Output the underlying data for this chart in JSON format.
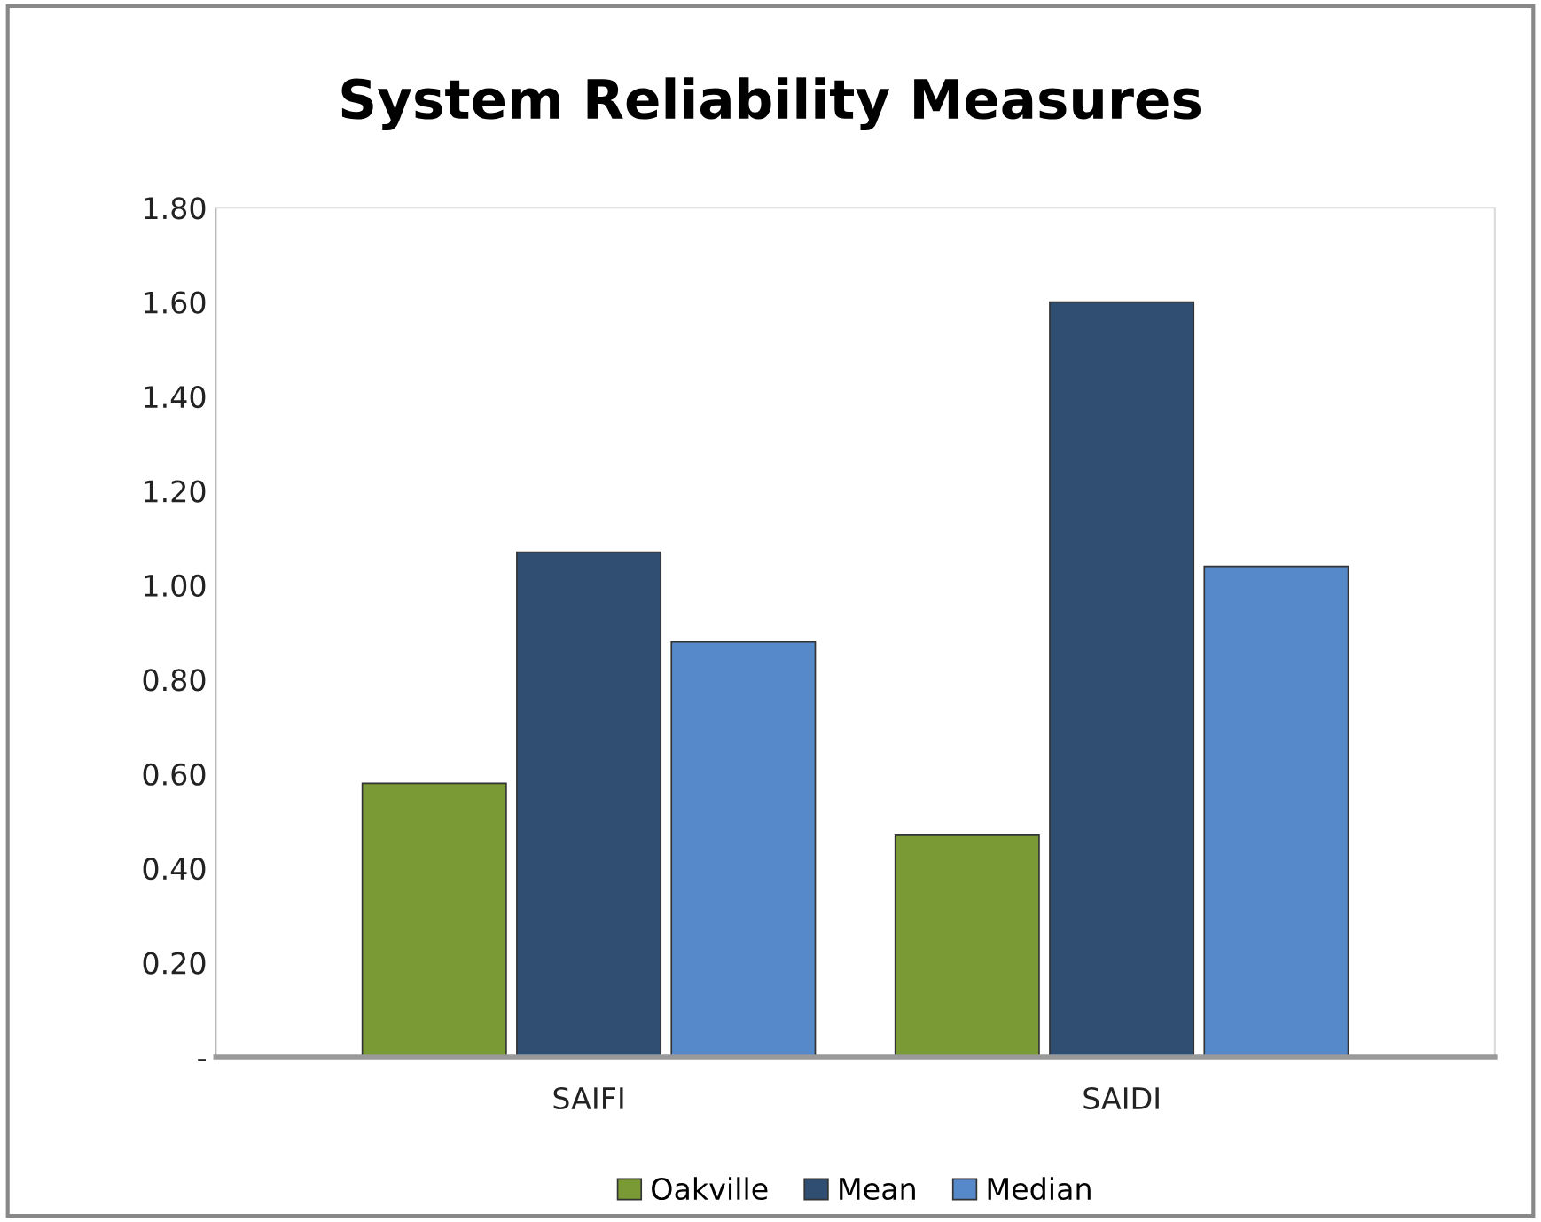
{
  "chart_data": {
    "type": "bar",
    "title": "System Reliability Measures",
    "categories": [
      "SAIFI",
      "SAIDI"
    ],
    "series": [
      {
        "name": "Oakville",
        "color": "#7a9a35",
        "values": [
          0.58,
          0.47
        ]
      },
      {
        "name": "Mean",
        "color": "#2f4e72",
        "values": [
          1.07,
          1.6
        ]
      },
      {
        "name": "Median",
        "color": "#5589c9",
        "values": [
          0.88,
          1.04
        ]
      }
    ],
    "ylim": [
      0,
      1.8
    ],
    "yticks": [
      {
        "value": 0,
        "label": "-"
      },
      {
        "value": 0.2,
        "label": "0.20"
      },
      {
        "value": 0.4,
        "label": "0.40"
      },
      {
        "value": 0.6,
        "label": "0.60"
      },
      {
        "value": 0.8,
        "label": "0.80"
      },
      {
        "value": 1.0,
        "label": "1.00"
      },
      {
        "value": 1.2,
        "label": "1.20"
      },
      {
        "value": 1.4,
        "label": "1.40"
      },
      {
        "value": 1.6,
        "label": "1.60"
      },
      {
        "value": 1.8,
        "label": "1.80"
      }
    ],
    "grid": false,
    "legend": "bottom"
  }
}
